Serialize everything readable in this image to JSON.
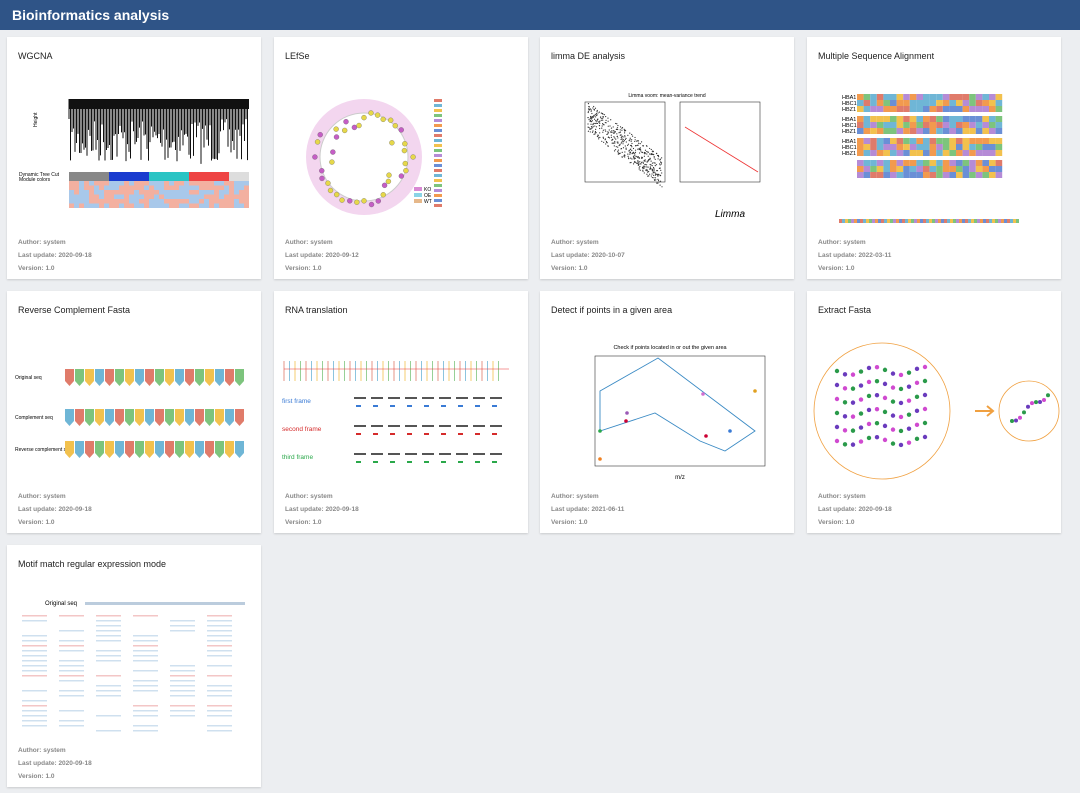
{
  "header": {
    "title": "Bioinformatics analysis"
  },
  "cards": [
    {
      "title": "WGCNA",
      "author": "Author: system",
      "last_update": "Last update: 2020-09-18",
      "version": "Version: 1.0",
      "thumb_texts": [
        "Height",
        "Dynamic Tree Cut",
        "Module colors"
      ]
    },
    {
      "title": "LEfSe",
      "author": "Author: system",
      "last_update": "Last update: 2020-09-12",
      "version": "Version: 1.0",
      "thumb_texts": [
        "KO",
        "OE",
        "WT"
      ]
    },
    {
      "title": "limma DE analysis",
      "author": "Author: system",
      "last_update": "Last update: 2020-10-07",
      "version": "Version: 1.0",
      "thumb_texts": [
        "Limma voom: mean-variance trend",
        "Limma"
      ]
    },
    {
      "title": "Multiple Sequence Alignment",
      "author": "Author: system",
      "last_update": "Last update: 2022-03-11",
      "version": "Version: 1.0",
      "thumb_texts": [
        "HBA1",
        "HBC1",
        "HBZ1"
      ]
    },
    {
      "title": "Reverse Complement Fasta",
      "author": "Author: system",
      "last_update": "Last update: 2020-09-18",
      "version": "Version: 1.0",
      "thumb_texts": [
        "Original seq",
        "Complement seq",
        "Reverse complement seq"
      ]
    },
    {
      "title": "RNA translation",
      "author": "Author: system",
      "last_update": "Last update: 2020-09-18",
      "version": "Version: 1.0",
      "thumb_texts": [
        "first frame",
        "second frame",
        "third frame"
      ]
    },
    {
      "title": "Detect if points in a given area",
      "author": "Author: system",
      "last_update": "Last update: 2021-06-11",
      "version": "Version: 1.0",
      "thumb_texts": [
        "Check if points located in or out the given area",
        "m/z"
      ]
    },
    {
      "title": "Extract Fasta",
      "author": "Author: system",
      "last_update": "Last update: 2020-09-18",
      "version": "Version: 1.0",
      "thumb_texts": []
    },
    {
      "title": "Motif match regular expression mode",
      "author": "Author: system",
      "last_update": "Last update: 2020-09-18",
      "version": "Version: 1.0",
      "thumb_texts": [
        "Original seq"
      ]
    }
  ]
}
